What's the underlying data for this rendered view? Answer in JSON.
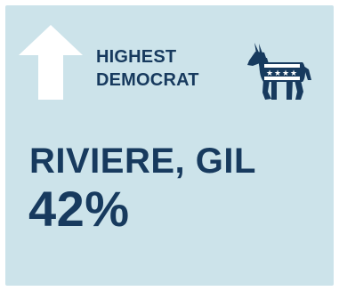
{
  "card": {
    "label_line1": "HIGHEST",
    "label_line2": "DEMOCRAT",
    "candidate_name": "RIVIERE, GIL",
    "candidate_percent": "42%",
    "icons": {
      "arrow": "up-arrow-icon",
      "party": "democrat-donkey-icon"
    },
    "colors": {
      "background": "#cce3ea",
      "text": "#173a5e",
      "arrow": "#ffffff"
    }
  }
}
